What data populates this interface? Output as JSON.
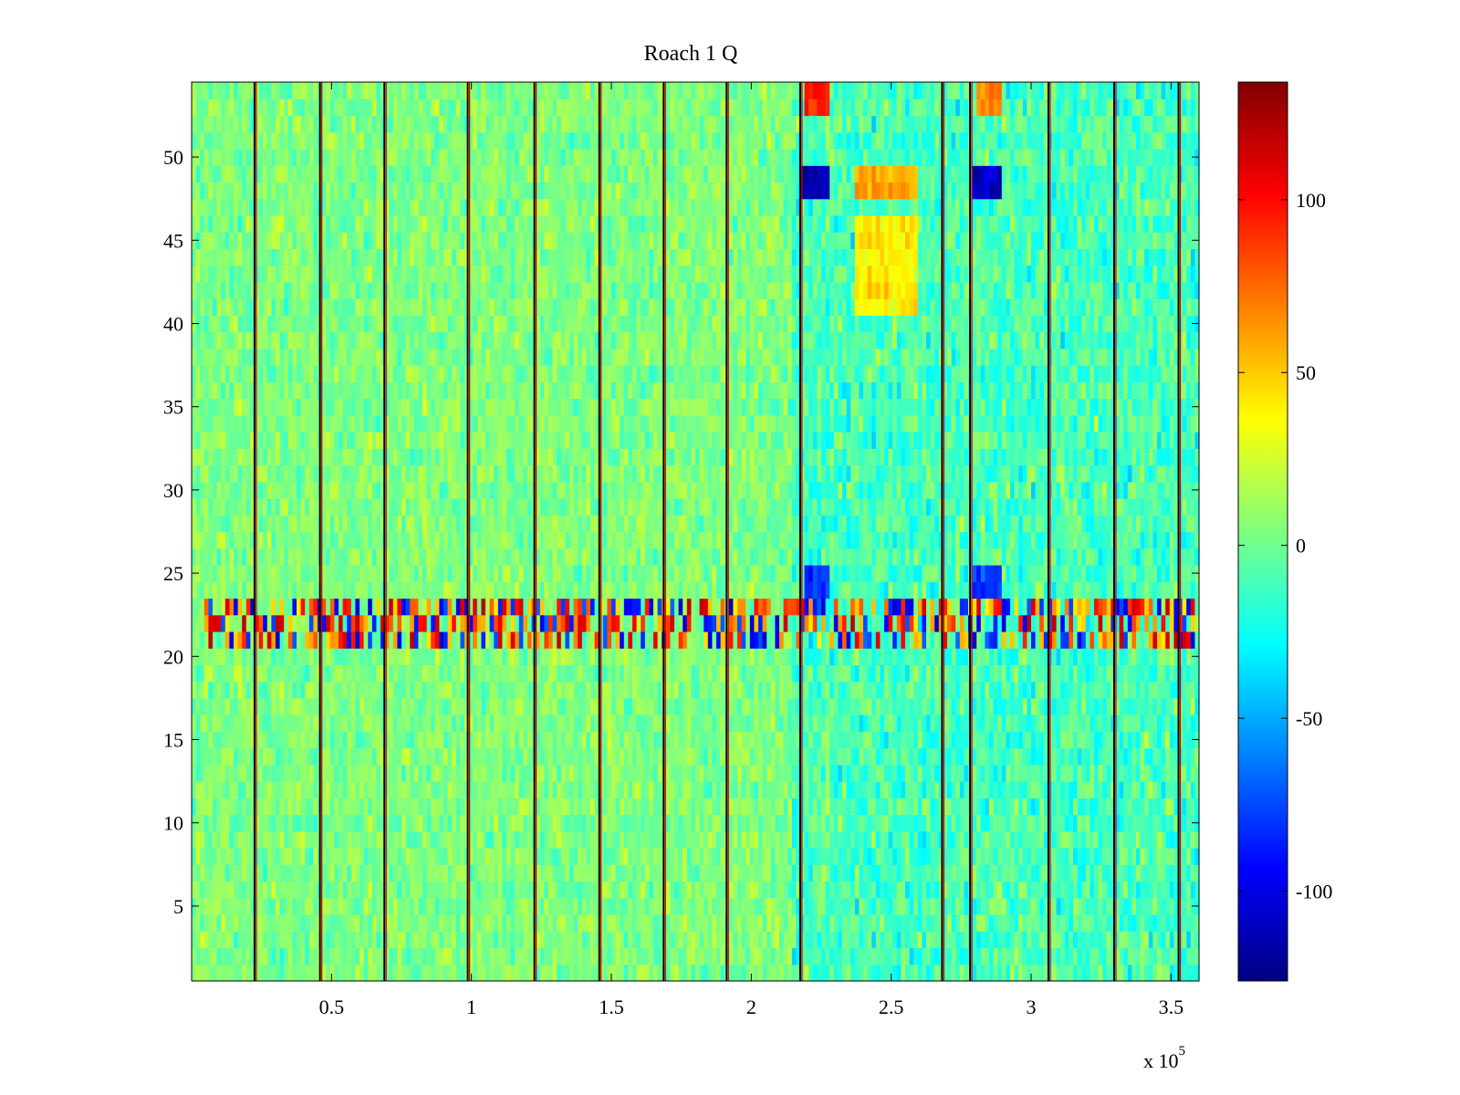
{
  "chart_data": {
    "type": "heatmap",
    "title": "Roach 1 Q",
    "xlabel": "",
    "ylabel": "",
    "xlim": [
      0,
      360000
    ],
    "ylim": [
      0.5,
      54.5
    ],
    "x_ticks": [
      {
        "value": 50000,
        "label": "0.5"
      },
      {
        "value": 100000,
        "label": "1"
      },
      {
        "value": 150000,
        "label": "1.5"
      },
      {
        "value": 200000,
        "label": "2"
      },
      {
        "value": 250000,
        "label": "2.5"
      },
      {
        "value": 300000,
        "label": "3"
      },
      {
        "value": 350000,
        "label": "3.5"
      }
    ],
    "x_exponent_label": "x 10",
    "x_exponent_power": "5",
    "y_ticks": [
      {
        "value": 5,
        "label": "5"
      },
      {
        "value": 10,
        "label": "10"
      },
      {
        "value": 15,
        "label": "15"
      },
      {
        "value": 20,
        "label": "20"
      },
      {
        "value": 25,
        "label": "25"
      },
      {
        "value": 30,
        "label": "30"
      },
      {
        "value": 35,
        "label": "35"
      },
      {
        "value": 40,
        "label": "40"
      },
      {
        "value": 45,
        "label": "45"
      },
      {
        "value": 50,
        "label": "50"
      }
    ],
    "rows": 54,
    "colorbar": {
      "colormap": "jet",
      "range": [
        -126,
        134
      ],
      "ticks": [
        {
          "value": 100,
          "label": "100"
        },
        {
          "value": 50,
          "label": "50"
        },
        {
          "value": 0,
          "label": "0"
        },
        {
          "value": -50,
          "label": "-50"
        },
        {
          "value": -100,
          "label": "-100"
        }
      ]
    },
    "vertical_lines_x": [
      22800,
      46200,
      69200,
      99000,
      122800,
      146000,
      169000,
      191500,
      217800,
      268500,
      278500,
      306500,
      330000,
      353000
    ],
    "features": [
      {
        "name": "noisy band",
        "x_range": [
          5000,
          360000
        ],
        "y_range": [
          21,
          23
        ],
        "value_range": [
          -110,
          120
        ]
      },
      {
        "name": "blue block",
        "x_range": [
          218000,
          228000
        ],
        "y_range": [
          47.5,
          49.5
        ],
        "value": -110
      },
      {
        "name": "blue block",
        "x_range": [
          279500,
          290000
        ],
        "y_range": [
          47.5,
          49.5
        ],
        "value": -110
      },
      {
        "name": "red block",
        "x_range": [
          218500,
          227500
        ],
        "y_range": [
          53,
          54.5
        ],
        "value": 95
      },
      {
        "name": "orange block",
        "x_range": [
          280000,
          290000
        ],
        "y_range": [
          53,
          54.5
        ],
        "value": 70
      },
      {
        "name": "orange block",
        "x_range": [
          237500,
          259000
        ],
        "y_range": [
          47.5,
          49.5
        ],
        "value": 60
      },
      {
        "name": "warm block",
        "x_range": [
          237500,
          259000
        ],
        "y_range": [
          40.5,
          46
        ],
        "value": 40
      },
      {
        "name": "blue block",
        "x_range": [
          218500,
          227500
        ],
        "y_range": [
          23.5,
          25.5
        ],
        "value": -80
      },
      {
        "name": "blue block",
        "x_range": [
          279500,
          290000
        ],
        "y_range": [
          23.5,
          25.5
        ],
        "value": -80
      }
    ]
  }
}
